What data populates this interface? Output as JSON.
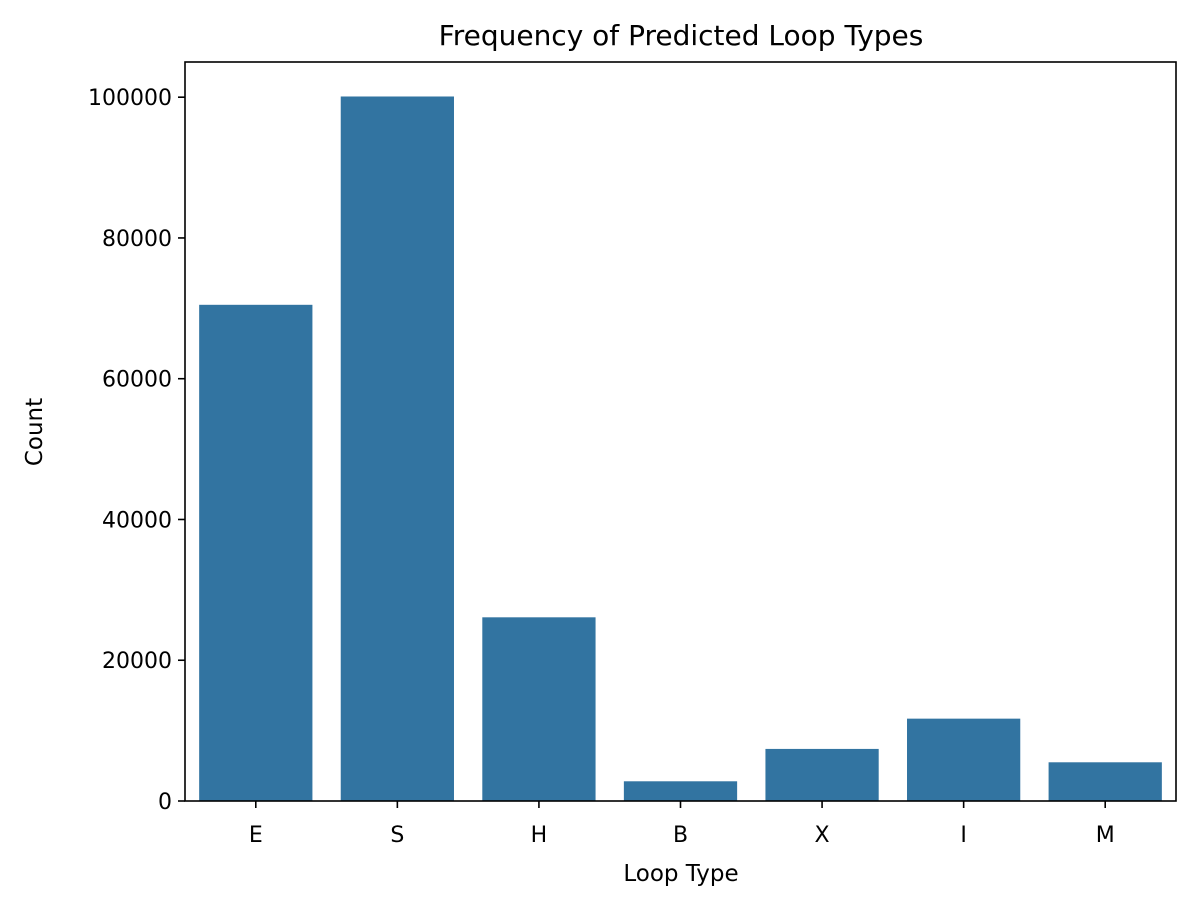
{
  "chart_data": {
    "type": "bar",
    "title": "Frequency of Predicted Loop Types",
    "xlabel": "Loop Type",
    "ylabel": "Count",
    "categories": [
      "E",
      "S",
      "H",
      "B",
      "X",
      "I",
      "M"
    ],
    "values": [
      70500,
      100100,
      26100,
      2800,
      7400,
      11700,
      5500
    ],
    "ylim": [
      0,
      105000
    ],
    "yticks": [
      0,
      20000,
      40000,
      60000,
      80000,
      100000
    ],
    "ytick_labels": [
      "0",
      "20000",
      "40000",
      "60000",
      "80000",
      "100000"
    ],
    "bar_color": "#3274a1",
    "grid": false,
    "legend": "none"
  }
}
